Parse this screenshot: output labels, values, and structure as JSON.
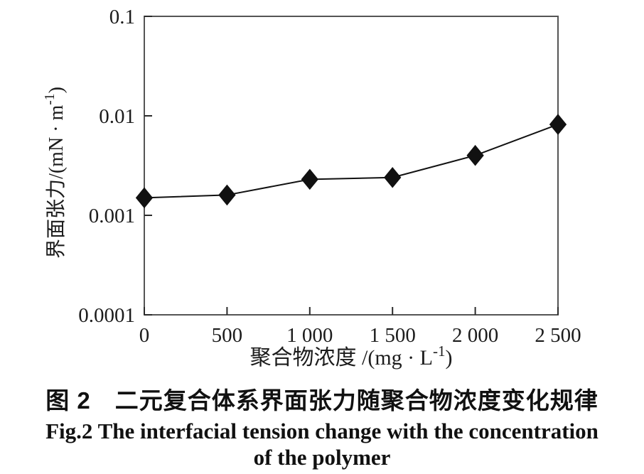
{
  "figure": {
    "caption_zh": "图 2　二元复合体系界面张力随聚合物浓度变化规律",
    "caption_en_line1": "Fig.2 The interfacial tension change with the concentration",
    "caption_en_line2": "of the polymer"
  },
  "chart_data": {
    "type": "line",
    "title": "",
    "x": [
      0,
      500,
      1000,
      1500,
      2000,
      2500
    ],
    "series": [
      {
        "name": "interfacial-tension",
        "values": [
          0.0015,
          0.0016,
          0.0023,
          0.0024,
          0.004,
          0.0082
        ]
      }
    ],
    "xlabel": "聚合物浓度 /(mg · L⁻¹)",
    "ylabel": "界面张力/(mN · m⁻¹)",
    "xlabel_parts": [
      {
        "t": "聚合物浓度 /(mg · L"
      },
      {
        "t": "-1",
        "sup": true
      },
      {
        "t": ")"
      }
    ],
    "ylabel_parts": [
      {
        "t": "界面张力/(mN · m"
      },
      {
        "t": "-1",
        "sup": true
      },
      {
        "t": ")"
      }
    ],
    "xlim": [
      0,
      2500
    ],
    "ylim": [
      0.0001,
      0.1
    ],
    "yscale": "log",
    "xtick_values": [
      0,
      500,
      1000,
      1500,
      2000,
      2500
    ],
    "xtick_labels": [
      "0",
      "500",
      "1 000",
      "1 500",
      "2 000",
      "2 500"
    ],
    "ytick_values": [
      0.1,
      0.01,
      0.001,
      0.0001
    ],
    "ytick_labels": [
      "0.1",
      "0.01",
      "0.001",
      "0.0001"
    ],
    "marker": "diamond",
    "grid": false,
    "legend_position": "none",
    "colors": {
      "line": "#111111",
      "marker": "#111111",
      "frame": "#555555",
      "tick": "#2a2a2a",
      "text": "#1c1c1c"
    }
  }
}
